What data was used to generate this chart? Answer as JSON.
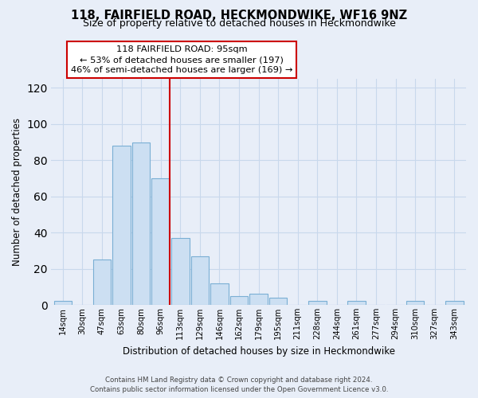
{
  "title": "118, FAIRFIELD ROAD, HECKMONDWIKE, WF16 9NZ",
  "subtitle": "Size of property relative to detached houses in Heckmondwike",
  "xlabel": "Distribution of detached houses by size in Heckmondwike",
  "ylabel": "Number of detached properties",
  "bin_labels": [
    "14sqm",
    "30sqm",
    "47sqm",
    "63sqm",
    "80sqm",
    "96sqm",
    "113sqm",
    "129sqm",
    "146sqm",
    "162sqm",
    "179sqm",
    "195sqm",
    "211sqm",
    "228sqm",
    "244sqm",
    "261sqm",
    "277sqm",
    "294sqm",
    "310sqm",
    "327sqm",
    "343sqm"
  ],
  "bin_values": [
    2,
    0,
    25,
    88,
    90,
    70,
    37,
    27,
    12,
    5,
    6,
    4,
    0,
    2,
    0,
    2,
    0,
    0,
    2,
    0,
    2
  ],
  "bar_color": "#ccdff2",
  "bar_edge_color": "#7aafd4",
  "highlight_bin_index": 5,
  "highlight_color": "#cc0000",
  "ylim": [
    0,
    125
  ],
  "yticks": [
    0,
    20,
    40,
    60,
    80,
    100,
    120
  ],
  "annotation_title": "118 FAIRFIELD ROAD: 95sqm",
  "annotation_line1": "← 53% of detached houses are smaller (197)",
  "annotation_line2": "46% of semi-detached houses are larger (169) →",
  "annotation_box_color": "#ffffff",
  "annotation_box_edge": "#cc0000",
  "footer_line1": "Contains HM Land Registry data © Crown copyright and database right 2024.",
  "footer_line2": "Contains public sector information licensed under the Open Government Licence v3.0.",
  "background_color": "#e8eef8",
  "grid_color": "#c8d8ec",
  "title_fontsize": 10.5,
  "subtitle_fontsize": 9,
  "axis_label_fontsize": 8.5
}
